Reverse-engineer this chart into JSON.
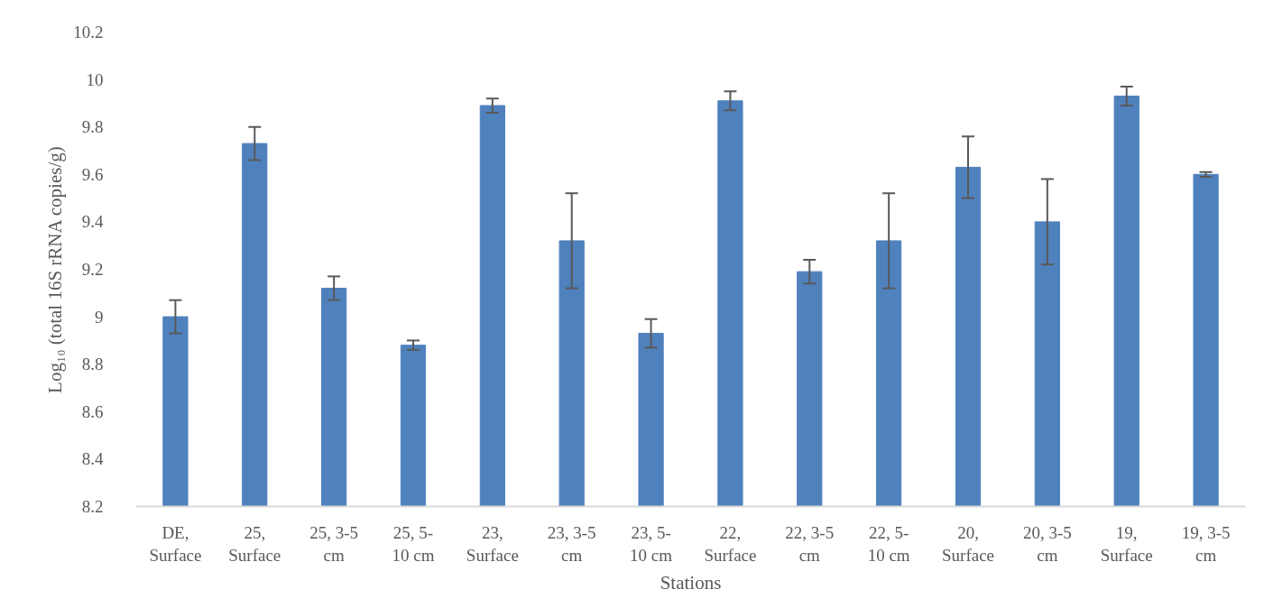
{
  "chart_data": {
    "type": "bar",
    "xlabel": "Stations",
    "ylabel": "Log₁₀ (total 16S rRNA copies/g)",
    "categories": [
      "DE, Surface",
      "25, Surface",
      "25, 3-5 cm",
      "25, 5-10 cm",
      "23, Surface",
      "23, 3-5 cm",
      "23, 5-10 cm",
      "22, Surface",
      "22, 3-5 cm",
      "22, 5-10 cm",
      "20, Surface",
      "20, 3-5 cm",
      "19, Surface",
      "19, 3-5 cm"
    ],
    "values": [
      9.0,
      9.73,
      9.12,
      8.88,
      9.89,
      9.32,
      8.93,
      9.91,
      9.19,
      9.32,
      9.63,
      9.4,
      9.93,
      9.6
    ],
    "errors": [
      0.07,
      0.07,
      0.05,
      0.02,
      0.03,
      0.2,
      0.06,
      0.04,
      0.05,
      0.2,
      0.13,
      0.18,
      0.04,
      0.01
    ],
    "color": "#4f81bd",
    "ylim": [
      8.2,
      10.2
    ],
    "yticks": [
      8.2,
      8.4,
      8.6,
      8.8,
      9,
      9.2,
      9.4,
      9.6,
      9.8,
      10,
      10.2
    ],
    "grid": false
  }
}
